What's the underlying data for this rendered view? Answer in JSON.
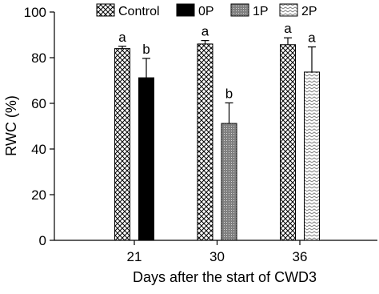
{
  "chart_data": {
    "type": "bar",
    "xlabel": "Days after the start of CWD3",
    "ylabel": "RWC (%)",
    "categories": [
      "21",
      "30",
      "36"
    ],
    "series": [
      {
        "name": "Control",
        "pattern": "crosshatch",
        "color": "#000000",
        "values": [
          84,
          86,
          85.7
        ],
        "errors": [
          1,
          1.5,
          3
        ],
        "labels": [
          "a",
          "a",
          "a"
        ]
      },
      {
        "name": "0P",
        "pattern": "solid",
        "color": "#000000",
        "values": [
          71.2,
          null,
          null
        ],
        "errors": [
          8.5,
          null,
          null
        ],
        "labels": [
          "b",
          null,
          null
        ]
      },
      {
        "name": "1P",
        "pattern": "dots",
        "color": "#808080",
        "values": [
          null,
          51.2,
          null
        ],
        "errors": [
          null,
          9,
          null
        ],
        "labels": [
          null,
          "b",
          null
        ]
      },
      {
        "name": "2P",
        "pattern": "zigzag",
        "color": "#808080",
        "values": [
          null,
          null,
          73.7
        ],
        "errors": [
          null,
          null,
          11
        ],
        "labels": [
          null,
          null,
          "a"
        ]
      }
    ],
    "ylim": [
      0,
      100
    ],
    "yticks": [
      0,
      20,
      40,
      60,
      80,
      100
    ],
    "legend": "top"
  }
}
